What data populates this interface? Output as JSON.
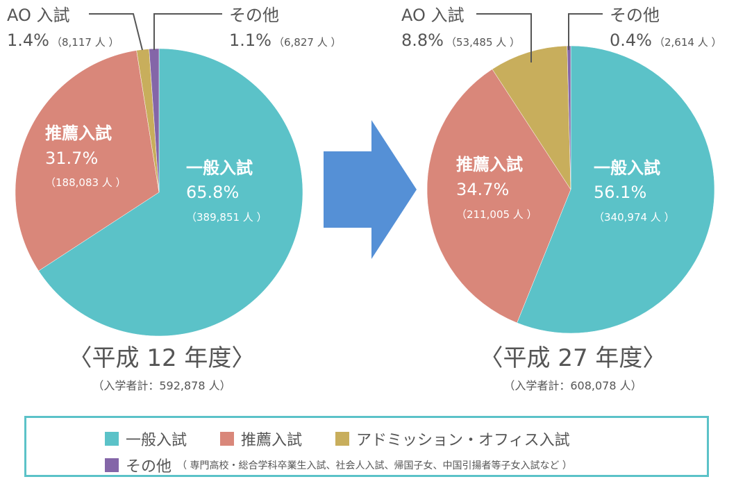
{
  "charts": [
    {
      "title": "〈平成 12 年度〉",
      "subtitle": "（入学者計：592,878 人）"
    },
    {
      "title": "〈平成 27 年度〉",
      "subtitle": "（入学者計：608,078 人）"
    }
  ],
  "chart_data": [
    {
      "type": "pie",
      "title": "〈平成 12 年度〉",
      "subtitle": "（入学者計：592,878 人）",
      "slices": [
        {
          "label": "一般入試",
          "percent": "65.8%",
          "count": "（389,851 人 ）",
          "value": 65.8,
          "color": "#5BC2C8",
          "label_placement": "inside"
        },
        {
          "label": "推薦入試",
          "percent": "31.7%",
          "count": "（188,083 人 ）",
          "value": 31.7,
          "color": "#D9877A",
          "label_placement": "inside"
        },
        {
          "label": "AO 入試",
          "percent": "1.4%",
          "count": "（8,117 人 ）",
          "value": 1.4,
          "color": "#C8AE5C",
          "label_placement": "outside"
        },
        {
          "label": "その他",
          "percent": "1.1%",
          "count": "（6,827 人 ）",
          "value": 1.1,
          "color": "#8466A8",
          "label_placement": "outside"
        }
      ]
    },
    {
      "type": "pie",
      "title": "〈平成 27 年度〉",
      "subtitle": "（入学者計：608,078 人）",
      "slices": [
        {
          "label": "一般入試",
          "percent": "56.1%",
          "count": "（340,974 人 ）",
          "value": 56.1,
          "color": "#5BC2C8",
          "label_placement": "inside"
        },
        {
          "label": "推薦入試",
          "percent": "34.7%",
          "count": "（211,005 人 ）",
          "value": 34.7,
          "color": "#D9877A",
          "label_placement": "inside"
        },
        {
          "label": "AO 入試",
          "percent": "8.8%",
          "count": "（53,485 人 ）",
          "value": 8.8,
          "color": "#C8AE5C",
          "label_placement": "outside"
        },
        {
          "label": "その他",
          "percent": "0.4%",
          "count": "（2,614 人 ）",
          "value": 0.4,
          "color": "#8466A8",
          "label_placement": "outside"
        }
      ]
    }
  ],
  "arrow": {
    "icon": "right-arrow-icon",
    "color": "#5590D6"
  },
  "legend": {
    "items": [
      {
        "label": "一般入試",
        "color": "#5BC2C8"
      },
      {
        "label": "推薦入試",
        "color": "#D9877A"
      },
      {
        "label": "アドミッション・オフィス入試",
        "color": "#C8AE5C"
      }
    ],
    "other": {
      "label": "その他",
      "color": "#8466A8",
      "note": "（ 専門高校・総合学科卒業生入試、社会人入試、帰国子女、中国引揚者等子女入試など ）"
    }
  }
}
